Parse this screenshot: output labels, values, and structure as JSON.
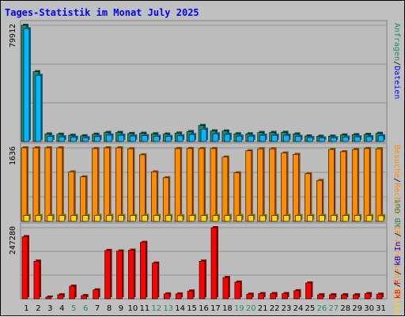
{
  "title": "Tages-Statistik im Monat July 2025",
  "colors": {
    "background": "#c0c0c0",
    "plot_background": "#bcbcbc",
    "gridline": "#8f8f8f",
    "anfragen": "#1f8a70",
    "dateien": "#00b8ff",
    "seiten": "#ffd700",
    "besuche": "#ff8c00",
    "kbf": "#ff0000",
    "kbin": "#0000ff",
    "kbout": "#1f8a70",
    "legend_text_bottom": "#ff0000",
    "weekend_label": "#1f8a70",
    "weekday_label": "#000000"
  },
  "legend": {
    "top": [
      {
        "label": "Anfragen",
        "color": "#1f8a70"
      },
      {
        "label": "/",
        "color": "#000000"
      },
      {
        "label": "Dateien",
        "color": "#0000ff"
      }
    ],
    "middle": [
      {
        "label": "Besuche",
        "color": "#ff8c00"
      },
      {
        "label": "/",
        "color": "#000000"
      },
      {
        "label": "Rechner",
        "color": "#ff8c00"
      },
      {
        "label": "(IP-Adressen)",
        "color": "#ff8c00"
      },
      {
        "label": "/",
        "color": "#000000"
      },
      {
        "label": "Seiten",
        "color": "#ffd700"
      }
    ],
    "bottom": [
      {
        "label": "kB F",
        "color": "#ff0000"
      },
      {
        "label": "/",
        "color": "#000000"
      },
      {
        "label": "kB In",
        "color": "#0000ff"
      },
      {
        "label": "/",
        "color": "#000000"
      },
      {
        "label": "kB Out",
        "color": "#1f8a70"
      }
    ]
  },
  "chart_data": [
    {
      "type": "bar",
      "panel": "top",
      "y_max_label": "79912",
      "ylim": [
        0,
        79912
      ],
      "categories": [
        "1",
        "2",
        "3",
        "4",
        "5",
        "6",
        "7",
        "8",
        "9",
        "10",
        "11",
        "12",
        "13",
        "14",
        "15",
        "16",
        "17",
        "18",
        "19",
        "20",
        "21",
        "22",
        "23",
        "24",
        "25",
        "26",
        "27",
        "28",
        "29",
        "30",
        "31"
      ],
      "weekend_days": [
        5,
        6,
        12,
        13,
        19,
        20,
        26,
        27
      ],
      "series": [
        {
          "name": "Anfragen",
          "color": "#1f8a70",
          "values": [
            79912,
            48000,
            5200,
            5000,
            4300,
            3900,
            5000,
            6200,
            6200,
            5500,
            5700,
            5300,
            5100,
            5800,
            6800,
            11000,
            7300,
            7200,
            5300,
            5300,
            6200,
            6200,
            6300,
            5200,
            3800,
            3600,
            3700,
            4500,
            4700,
            4900,
            5600
          ]
        },
        {
          "name": "Dateien",
          "color": "#00b8ff",
          "values": [
            77500,
            45500,
            3400,
            3200,
            2900,
            2600,
            3400,
            4400,
            4300,
            3800,
            4000,
            3600,
            3400,
            3900,
            4800,
            8500,
            5200,
            4900,
            3700,
            3700,
            4300,
            4300,
            4300,
            3500,
            2700,
            2400,
            2600,
            3000,
            3200,
            3300,
            3900
          ]
        }
      ]
    },
    {
      "type": "bar",
      "panel": "middle",
      "y_max_label": "1636",
      "ylim": [
        0,
        1636
      ],
      "categories": [
        "1",
        "2",
        "3",
        "4",
        "5",
        "6",
        "7",
        "8",
        "9",
        "10",
        "11",
        "12",
        "13",
        "14",
        "15",
        "16",
        "17",
        "18",
        "19",
        "20",
        "21",
        "22",
        "23",
        "24",
        "25",
        "26",
        "27",
        "28",
        "29",
        "30",
        "31"
      ],
      "series": [
        {
          "name": "Besuche",
          "color": "#ff8c00",
          "values": [
            1636,
            1636,
            1636,
            1636,
            1100,
            990,
            1620,
            1636,
            1636,
            1616,
            1480,
            1100,
            970,
            1620,
            1620,
            1620,
            1620,
            1430,
            1080,
            1570,
            1615,
            1615,
            1520,
            1490,
            1060,
            910,
            1600,
            1550,
            1600,
            1620,
            1615
          ]
        },
        {
          "name": "Seiten",
          "color": "#ffd700",
          "values": [
            130,
            130,
            130,
            130,
            130,
            130,
            135,
            130,
            130,
            130,
            135,
            130,
            130,
            125,
            130,
            130,
            130,
            130,
            130,
            130,
            125,
            130,
            130,
            130,
            130,
            130,
            130,
            130,
            130,
            130,
            125
          ]
        }
      ]
    },
    {
      "type": "bar",
      "panel": "bottom",
      "y_max_label": "247280",
      "ylim": [
        0,
        247280
      ],
      "categories": [
        "1",
        "2",
        "3",
        "4",
        "5",
        "6",
        "7",
        "8",
        "9",
        "10",
        "11",
        "12",
        "13",
        "14",
        "15",
        "16",
        "17",
        "18",
        "19",
        "20",
        "21",
        "22",
        "23",
        "24",
        "25",
        "26",
        "27",
        "28",
        "29",
        "30",
        "31"
      ],
      "series": [
        {
          "name": "kB F",
          "color": "#ff0000",
          "values": [
            216000,
            131000,
            6000,
            14000,
            44000,
            11000,
            31000,
            168000,
            166000,
            169000,
            196000,
            124000,
            17000,
            17000,
            27000,
            131000,
            247280,
            74000,
            58000,
            16000,
            18000,
            18000,
            18000,
            28000,
            55000,
            14000,
            14000,
            14000,
            14000,
            18000,
            16000
          ]
        }
      ]
    }
  ]
}
